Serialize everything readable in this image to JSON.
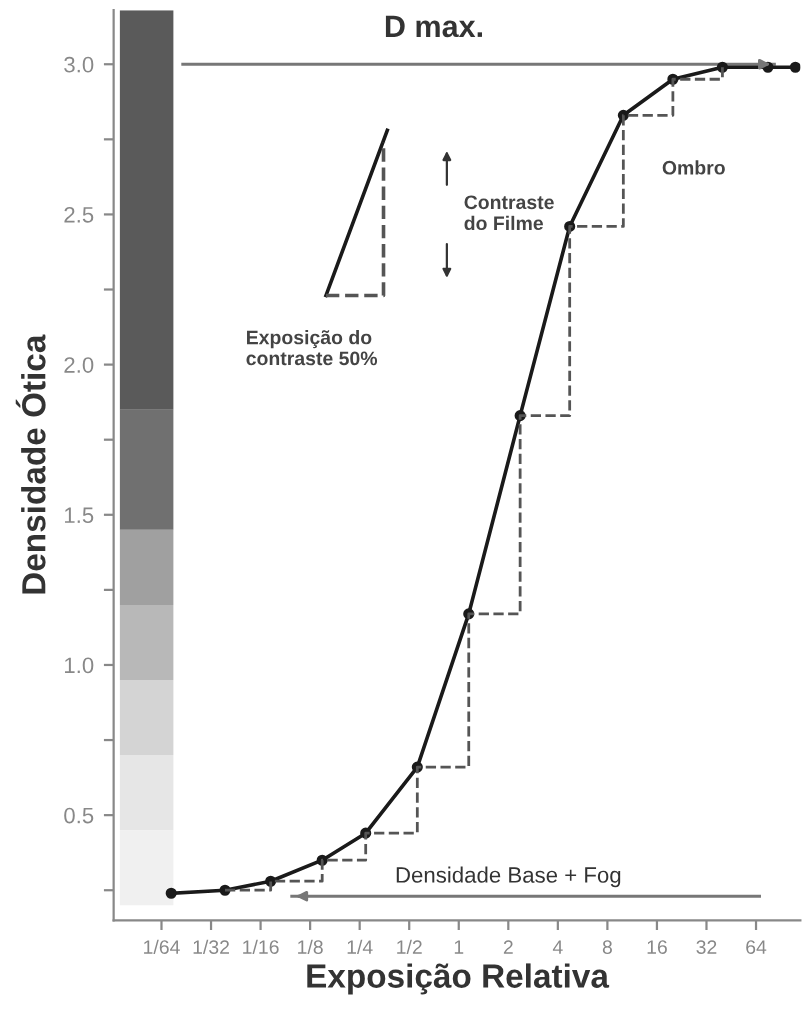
{
  "chart_data": {
    "type": "line",
    "xlabel": "Exposição Relativa",
    "ylabel": "Densidade Ótica",
    "log": "x",
    "xlim": [
      0.008,
      119
    ],
    "ylim": [
      0.15,
      3.18
    ],
    "xticks": [
      {
        "value": 0.015625,
        "label": "1/64"
      },
      {
        "value": 0.03125,
        "label": "1/32"
      },
      {
        "value": 0.0625,
        "label": "1/16"
      },
      {
        "value": 0.125,
        "label": "1/8"
      },
      {
        "value": 0.25,
        "label": "1/4"
      },
      {
        "value": 0.5,
        "label": "1/2"
      },
      1,
      2,
      4,
      8,
      16,
      32,
      64
    ],
    "yticks": [
      {
        "value": 0.25,
        "label": null
      },
      0.5,
      {
        "value": 0.75,
        "label": null
      },
      {
        "value": 1.0,
        "label": "1.0"
      },
      {
        "value": 1.25,
        "label": null
      },
      1.5,
      {
        "value": 1.75,
        "label": null
      },
      {
        "value": 2.0,
        "label": "2.0"
      },
      {
        "value": 2.25,
        "label": null
      },
      2.5,
      {
        "value": 2.75,
        "label": null
      },
      {
        "value": 3.0,
        "label": "3.0"
      }
    ],
    "grid": false,
    "series": [
      {
        "color": "#1a1a1a",
        "marker": "circle",
        "line_style": "solid",
        "x": [
          0.0179,
          0.038,
          0.072,
          0.148,
          0.272,
          0.56,
          1.15,
          2.36,
          4.72,
          10.0,
          20,
          40,
          75.6,
          111
        ],
        "values": [
          0.24,
          0.25,
          0.28,
          0.35,
          0.44,
          0.66,
          1.17,
          1.83,
          2.46,
          2.83,
          2.95,
          2.99,
          2.99,
          2.99
        ]
      },
      {
        "type": "step",
        "color": "#555555",
        "line_style": "dashed",
        "x": [
          0.038,
          0.072,
          0.148,
          0.272,
          0.56,
          1.15,
          2.36,
          4.72,
          10.0,
          20,
          40
        ],
        "values": [
          0.25,
          0.28,
          0.35,
          0.44,
          0.66,
          1.17,
          1.83,
          2.46,
          2.83,
          2.95,
          2.99
        ]
      },
      {
        "color": "#1a1a1a",
        "line_style": "solid",
        "x": [
          0.156,
          0.368
        ],
        "values": [
          2.23,
          2.78
        ]
      },
      {
        "color": "#555555",
        "line_style": "dashed",
        "x": [
          0.156,
          0.349,
          0.349
        ],
        "values": [
          2.23,
          2.23,
          2.74
        ]
      }
    ],
    "ref_lines": [
      {
        "axis": "y",
        "value": 3.0,
        "label": "D max.",
        "color": "#777777"
      },
      {
        "axis": "y",
        "value": 0.23,
        "label": "Densidade Base + Fog",
        "color": "#777777"
      }
    ],
    "annotations": [
      "Contraste\ndo Filme",
      "Ombro",
      "Exposição do\ncontraste 50%"
    ]
  }
}
